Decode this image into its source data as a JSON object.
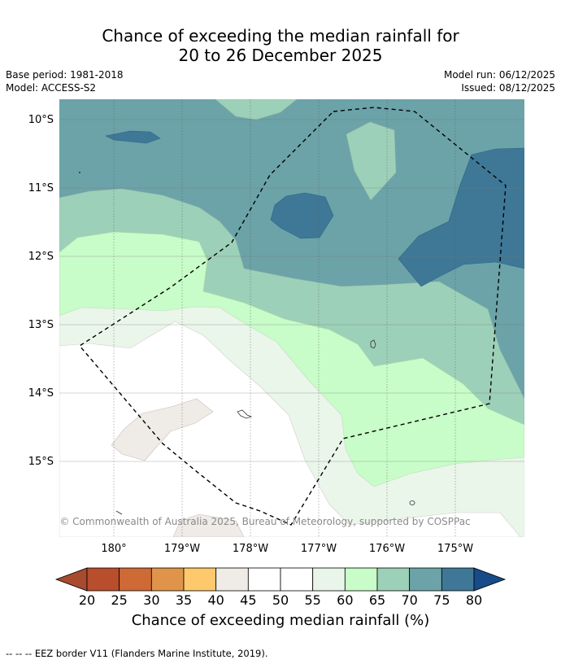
{
  "title": {
    "line1": "Chance of exceeding the median rainfall for",
    "line2": "20 to 26 December 2025"
  },
  "meta": {
    "base_period": "Base period: 1981-2018",
    "model": "Model: ACCESS-S2",
    "model_run": "Model run: 06/12/2025",
    "issued": "Issued: 08/12/2025"
  },
  "map": {
    "lat_labels": [
      "10°S",
      "11°S",
      "12°S",
      "13°S",
      "14°S",
      "15°S"
    ],
    "lon_labels": [
      "180°",
      "179°W",
      "178°W",
      "177°W",
      "176°W",
      "175°W"
    ],
    "copyright": "© Commonwealth of Australia 2025, Bureau of Meteorology, supported by COSPPac"
  },
  "colorbar": {
    "ticks": [
      "20",
      "25",
      "30",
      "35",
      "40",
      "45",
      "50",
      "55",
      "60",
      "65",
      "70",
      "75",
      "80"
    ],
    "colors": [
      "#a84a2e",
      "#b84e2c",
      "#cd6a35",
      "#e0944a",
      "#fdc96c",
      "#efebe6",
      "#ffffff",
      "#ffffff",
      "#e8f5e8",
      "#c8fcc8",
      "#9dd0b8",
      "#6ba3a8",
      "#3f7896",
      "#174b8a"
    ],
    "label": "Chance of exceeding median rainfall (%)"
  },
  "legend_note": "--  --  -- EEZ border V11 (Flanders Marine Institute, 2019)."
}
